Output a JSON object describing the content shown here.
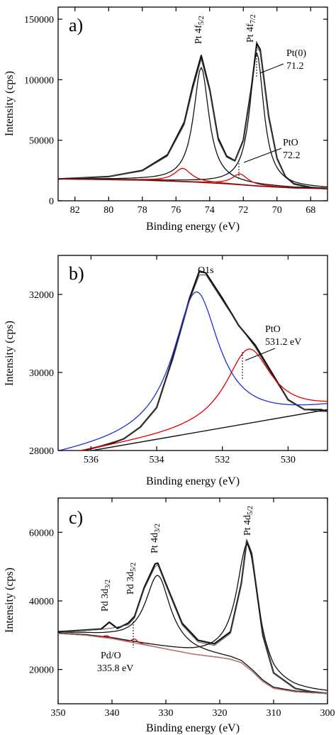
{
  "chart_data": [
    {
      "type": "line",
      "panel_label": "a)",
      "xlabel": "Binding energy (eV)",
      "ylabel": "Intensity (cps)",
      "xlim": [
        83,
        67
      ],
      "ylim": [
        0,
        160000
      ],
      "xticks": [
        "82",
        "80",
        "78",
        "76",
        "74",
        "72",
        "70",
        "68"
      ],
      "yticks": [
        "0",
        "50000",
        "100000",
        "150000"
      ],
      "grid": false,
      "series": [
        {
          "style": "raw",
          "color": "#111111",
          "x": [
            83,
            80,
            78,
            76.5,
            75.5,
            75,
            74.5,
            74,
            73.5,
            73,
            72.5,
            72,
            71.5,
            71.2,
            71,
            70.5,
            70,
            69.5,
            69,
            68,
            67
          ],
          "y": [
            18000,
            20000,
            25000,
            38000,
            65000,
            95000,
            120000,
            92000,
            52000,
            37000,
            33000,
            50000,
            95000,
            130000,
            125000,
            70000,
            35000,
            20000,
            14000,
            11000,
            10000
          ]
        },
        {
          "style": "envelope",
          "color": "#555555",
          "x": [
            83,
            80,
            78,
            76.5,
            75.5,
            75,
            74.5,
            74,
            73.5,
            73,
            72.5,
            72,
            71.5,
            71.2,
            71,
            70.5,
            70,
            69.5,
            69,
            68,
            67
          ],
          "y": [
            18000,
            20000,
            24500,
            37000,
            63000,
            92000,
            117000,
            90000,
            50000,
            36000,
            32500,
            49000,
            93000,
            127000,
            123000,
            68000,
            34000,
            19500,
            13500,
            10500,
            9500
          ]
        },
        {
          "style": "component",
          "name": "Pt 4f5/2",
          "color": "#111111",
          "center": 74.5,
          "amp": 95000,
          "width": 0.55
        },
        {
          "style": "component",
          "name": "Pt 4f7/2",
          "color": "#111111",
          "center": 71.2,
          "amp": 110000,
          "width": 0.5
        },
        {
          "style": "component",
          "name": "PtO 4f5/2",
          "color": "#e00000",
          "center": 75.6,
          "amp": 11000,
          "width": 0.6
        },
        {
          "style": "component",
          "name": "PtO 4f7/2",
          "color": "#e00000",
          "center": 72.2,
          "amp": 9000,
          "width": 0.55
        },
        {
          "style": "background",
          "color": "#7a1010",
          "x": [
            83,
            78,
            75,
            73,
            71,
            69,
            67
          ],
          "y": [
            18000,
            17000,
            15500,
            14000,
            12000,
            10500,
            10000
          ]
        }
      ],
      "annotations": [
        {
          "text_main": "Pt 4f",
          "text_sub": "5/2",
          "rotated": true
        },
        {
          "text_main": "Pt 4f",
          "text_sub": "7/2",
          "rotated": true
        },
        {
          "text": "Pt(0)"
        },
        {
          "text": "71.2"
        },
        {
          "text": "PtO"
        },
        {
          "text": "72.2"
        }
      ]
    },
    {
      "type": "line",
      "panel_label": "b)",
      "xlabel": "Binding energy (eV)",
      "ylabel": "Intensity (cps)",
      "xlim": [
        537,
        528.8
      ],
      "ylim": [
        28000,
        33000
      ],
      "xticks": [
        "536",
        "534",
        "532",
        "530"
      ],
      "yticks": [
        "28000",
        "30000",
        "32000"
      ],
      "grid": false,
      "series": [
        {
          "style": "raw",
          "color": "#111111",
          "x": [
            537,
            536.5,
            536,
            535.5,
            535,
            534.5,
            534,
            533.5,
            533,
            532.7,
            532.5,
            532,
            531.5,
            531,
            530.5,
            530,
            529.5,
            529,
            528.8
          ],
          "y": [
            27850,
            27950,
            28050,
            28150,
            28300,
            28600,
            29100,
            30400,
            31900,
            32600,
            32550,
            31900,
            31200,
            30700,
            30000,
            29300,
            29050,
            29050,
            29000
          ]
        },
        {
          "style": "envelope",
          "color": "#444444",
          "x": [
            537,
            536,
            535,
            534.5,
            534,
            533.5,
            533,
            532.7,
            532.5,
            532,
            531.5,
            531,
            530.5,
            530,
            529.5,
            529,
            528.8
          ],
          "y": [
            27900,
            28050,
            28300,
            28600,
            29100,
            30350,
            31850,
            32500,
            32500,
            31850,
            31200,
            30650,
            29950,
            29300,
            29050,
            29000,
            29000
          ]
        },
        {
          "style": "component",
          "name": "O1s",
          "color": "#1f2fd6",
          "center": 532.8,
          "amp": 3600,
          "width": 0.85
        },
        {
          "style": "component",
          "name": "PtO",
          "color": "#e00000",
          "center": 531.2,
          "amp": 1900,
          "width": 0.85
        },
        {
          "style": "background",
          "color": "#111111",
          "x": [
            537,
            528.8
          ],
          "y": [
            27850,
            29050
          ]
        }
      ],
      "annotations": [
        {
          "text": "O1s"
        },
        {
          "text": "PtO"
        },
        {
          "text": "531.2 eV"
        }
      ]
    },
    {
      "type": "line",
      "panel_label": "c)",
      "xlabel": "Binding energy (eV)",
      "ylabel": "Intensity (cps)",
      "xlim": [
        350,
        300
      ],
      "ylim": [
        10000,
        70000
      ],
      "xticks": [
        "350",
        "340",
        "330",
        "320",
        "310",
        "300"
      ],
      "yticks": [
        "20000",
        "40000",
        "60000"
      ],
      "grid": false,
      "series": [
        {
          "style": "raw",
          "color": "#111111",
          "x": [
            350,
            345,
            342,
            340.5,
            339,
            337,
            335.8,
            334,
            332,
            331.5,
            330,
            327,
            324,
            321,
            318,
            316,
            315,
            314,
            312,
            310,
            306,
            303,
            300
          ],
          "y": [
            31000,
            31500,
            31800,
            33800,
            32000,
            33500,
            35500,
            44000,
            50800,
            51000,
            45000,
            33500,
            28500,
            27500,
            31000,
            45000,
            57500,
            53000,
            30000,
            19000,
            14500,
            13500,
            13000
          ]
        },
        {
          "style": "envelope",
          "color": "#555555",
          "x": [
            350,
            345,
            342,
            340,
            337,
            335.8,
            334,
            332,
            331.5,
            330,
            327,
            324,
            321,
            318,
            316,
            315,
            314,
            312,
            310,
            306,
            303,
            300
          ],
          "y": [
            31000,
            31400,
            31700,
            32100,
            33000,
            35000,
            43500,
            50000,
            50500,
            44500,
            33000,
            28000,
            27000,
            30500,
            44500,
            58000,
            54000,
            30500,
            19000,
            14500,
            13500,
            13000
          ]
        },
        {
          "style": "component",
          "name": "Pt 4d3/2",
          "color": "#111111",
          "center": 331.5,
          "amp": 21000,
          "width": 2.8
        },
        {
          "style": "component",
          "name": "Pt 4d5/2",
          "color": "#111111",
          "center": 314.8,
          "amp": 36000,
          "width": 2.4
        },
        {
          "style": "component",
          "name": "Pd 3d3/2",
          "color": "#e00000",
          "center": 341.0,
          "amp": 700,
          "width": 0.6
        },
        {
          "style": "component",
          "name": "Pd 3d5/2",
          "color": "#e00000",
          "center": 335.8,
          "amp": 1200,
          "width": 0.6
        },
        {
          "style": "background",
          "color": "#b08080",
          "x": [
            350,
            345,
            340,
            335,
            330,
            325,
            320,
            318,
            316,
            314,
            312,
            310,
            306,
            303,
            300
          ],
          "y": [
            30500,
            30000,
            29000,
            27500,
            26000,
            24500,
            23500,
            23000,
            22000,
            19500,
            16500,
            14500,
            13500,
            13200,
            13000
          ]
        }
      ],
      "annotations": [
        {
          "text_main": "Pd 3d",
          "text_sub": "3/2",
          "rotated": true
        },
        {
          "text_main": "Pd 3d",
          "text_sub": "5/2",
          "rotated": true
        },
        {
          "text_main": "Pt 4d",
          "text_sub": "3/2",
          "rotated": true
        },
        {
          "text_main": "Pt 4d",
          "text_sub": "5/2",
          "rotated": true
        },
        {
          "text": "Pd/O"
        },
        {
          "text": "335.8 eV"
        }
      ]
    }
  ]
}
